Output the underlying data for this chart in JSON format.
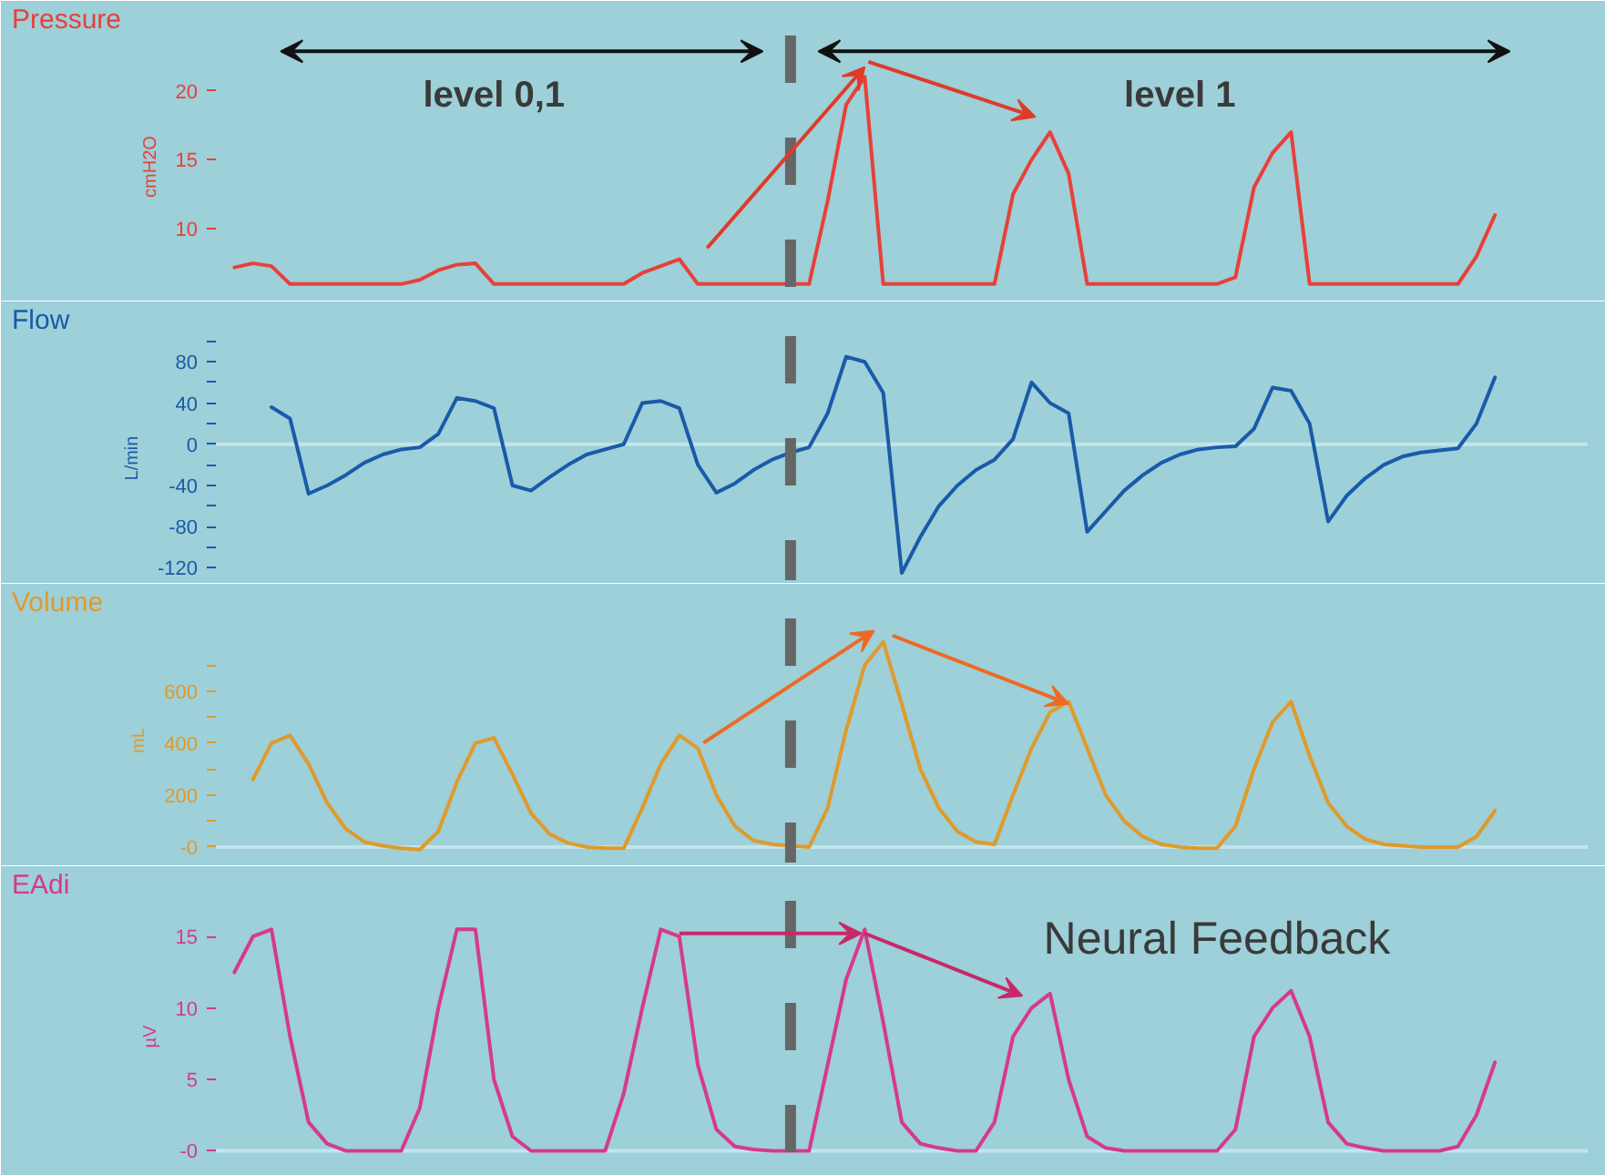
{
  "chart_data": [
    {
      "type": "line",
      "title": "Pressure",
      "ylabel": "cmH2O",
      "tick_labels": "y",
      "annotations": [
        "level 0,1",
        "level 1"
      ],
      "categories": [
        null,
        null,
        null,
        null,
        null,
        null,
        null,
        null,
        null,
        null,
        null,
        null,
        null,
        null,
        null,
        null,
        null,
        null,
        null,
        null,
        null,
        null,
        null,
        null,
        null,
        null,
        null,
        null,
        null,
        null,
        null,
        null,
        null,
        null,
        null,
        null,
        null,
        null,
        null,
        null,
        null,
        null,
        null,
        null,
        null,
        null,
        null,
        null,
        null,
        null,
        null,
        null,
        null,
        null,
        null,
        null,
        null,
        null,
        null,
        null,
        null,
        null,
        null,
        null,
        null,
        null,
        null,
        null,
        null
      ],
      "ylim": [
        5,
        24
      ],
      "yticks": [
        10,
        15,
        20
      ],
      "series": [
        {
          "color": "#e8403a",
          "values": [
            7.2,
            7.5,
            7.3,
            6,
            6,
            6,
            6,
            6,
            6,
            6,
            6.3,
            7.0,
            7.4,
            7.5,
            6,
            6,
            6,
            6,
            6,
            6,
            6,
            6,
            6.8,
            7.3,
            7.8,
            6,
            6,
            6,
            6,
            6,
            6,
            6,
            12,
            19,
            21,
            6,
            6,
            6,
            6,
            6,
            6,
            6,
            12.5,
            15,
            17,
            14,
            6,
            6,
            6,
            6,
            6,
            6,
            6,
            6,
            6.5,
            13,
            15.5,
            17,
            6,
            6,
            6,
            6,
            6,
            6,
            6,
            6,
            6,
            8,
            11
          ]
        }
      ]
    },
    {
      "type": "line",
      "title": "Flow",
      "ylabel": "L/min",
      "tick_labels": "y",
      "categories": [
        null,
        null,
        null,
        null,
        null,
        null,
        null,
        null,
        null,
        null,
        null,
        null,
        null,
        null,
        null,
        null,
        null,
        null,
        null,
        null,
        null,
        null,
        null,
        null,
        null,
        null,
        null,
        null,
        null,
        null,
        null,
        null,
        null,
        null,
        null,
        null,
        null,
        null,
        null,
        null,
        null,
        null,
        null,
        null,
        null,
        null,
        null,
        null,
        null,
        null,
        null,
        null,
        null,
        null,
        null,
        null,
        null,
        null,
        null,
        null,
        null,
        null,
        null,
        null,
        null,
        null,
        null,
        null,
        null
      ],
      "ylim": [
        -132,
        105
      ],
      "yticks": [
        {
          "value": 100,
          "label": null
        },
        80,
        {
          "value": 60,
          "label": null
        },
        40,
        {
          "value": 20,
          "label": null
        },
        0,
        {
          "value": -20,
          "label": null
        },
        -40,
        {
          "value": -60,
          "label": null
        },
        -80,
        {
          "value": -100,
          "label": null
        },
        -120
      ],
      "ref_lines": [
        {
          "axis": "y",
          "value": 0,
          "color": "#c4e4ea"
        }
      ],
      "series": [
        {
          "color": "#1a5aa8",
          "values": [
            null,
            null,
            36,
            25,
            -48,
            -40,
            -30,
            -18,
            -10,
            -5,
            -3,
            10,
            45,
            42,
            35,
            -40,
            -45,
            -32,
            -20,
            -10,
            -5,
            0,
            40,
            42,
            35,
            -20,
            -47,
            -38,
            -25,
            -15,
            -8,
            -3,
            30,
            85,
            80,
            50,
            -125,
            -90,
            -60,
            -40,
            -25,
            -15,
            5,
            60,
            40,
            30,
            -85,
            -65,
            -45,
            -30,
            -18,
            -10,
            -5,
            -3,
            -2,
            15,
            55,
            52,
            20,
            -75,
            -50,
            -33,
            -20,
            -12,
            -8,
            -6,
            -4,
            20,
            65
          ]
        }
      ]
    },
    {
      "type": "line",
      "title": "Volume",
      "ylabel": "mL",
      "tick_labels": "y",
      "categories": [
        null,
        null,
        null,
        null,
        null,
        null,
        null,
        null,
        null,
        null,
        null,
        null,
        null,
        null,
        null,
        null,
        null,
        null,
        null,
        null,
        null,
        null,
        null,
        null,
        null,
        null,
        null,
        null,
        null,
        null,
        null,
        null,
        null,
        null,
        null,
        null,
        null,
        null,
        null,
        null,
        null,
        null,
        null,
        null,
        null,
        null,
        null,
        null,
        null,
        null,
        null,
        null,
        null,
        null,
        null,
        null,
        null,
        null,
        null,
        null,
        null,
        null,
        null,
        null,
        null,
        null,
        null,
        null,
        null
      ],
      "ylim": [
        -60,
        880
      ],
      "yticks": [
        {
          "value": 0,
          "label": "-0"
        },
        {
          "value": 100,
          "label": null
        },
        200,
        {
          "value": 300,
          "label": null
        },
        400,
        {
          "value": 500,
          "label": null
        },
        600,
        {
          "value": 700,
          "label": null
        }
      ],
      "ref_lines": [
        {
          "axis": "y",
          "value": 0,
          "color": "#c4e4ea"
        }
      ],
      "series": [
        {
          "color": "#e09a2c",
          "values": [
            null,
            260,
            400,
            430,
            320,
            170,
            70,
            20,
            5,
            -5,
            -10,
            60,
            250,
            400,
            420,
            280,
            130,
            50,
            15,
            0,
            -5,
            -5,
            150,
            320,
            430,
            380,
            200,
            80,
            25,
            10,
            5,
            0,
            150,
            450,
            700,
            790,
            550,
            300,
            150,
            60,
            20,
            10,
            200,
            380,
            520,
            560,
            380,
            200,
            100,
            40,
            10,
            0,
            -5,
            -5,
            80,
            300,
            480,
            560,
            350,
            170,
            80,
            30,
            10,
            5,
            0,
            0,
            0,
            40,
            140
          ]
        }
      ]
    },
    {
      "type": "line",
      "title": "EAdi",
      "ylabel": "µV",
      "tick_labels": "y",
      "annotations": [
        "Neural Feedback"
      ],
      "categories": [
        null,
        null,
        null,
        null,
        null,
        null,
        null,
        null,
        null,
        null,
        null,
        null,
        null,
        null,
        null,
        null,
        null,
        null,
        null,
        null,
        null,
        null,
        null,
        null,
        null,
        null,
        null,
        null,
        null,
        null,
        null,
        null,
        null,
        null,
        null,
        null,
        null,
        null,
        null,
        null,
        null,
        null,
        null,
        null,
        null,
        null,
        null,
        null,
        null,
        null,
        null,
        null,
        null,
        null,
        null,
        null,
        null,
        null,
        null,
        null,
        null,
        null,
        null,
        null,
        null,
        null,
        null,
        null,
        null
      ],
      "ylim": [
        -1.5,
        17.5
      ],
      "yticks": [
        {
          "value": 0,
          "label": "-0"
        },
        5,
        10,
        15
      ],
      "ref_lines": [
        {
          "axis": "y",
          "value": 0,
          "color": "#c4e4ea"
        }
      ],
      "series": [
        {
          "color": "#d63a8a",
          "values": [
            12.5,
            15,
            15.5,
            8,
            2,
            0.5,
            0,
            0,
            0,
            0,
            3,
            10,
            15.5,
            15.5,
            5,
            1,
            0,
            0,
            0,
            0,
            0,
            4,
            10,
            15.5,
            15,
            6,
            1.5,
            0.3,
            0.1,
            0,
            0,
            0,
            6,
            12,
            15.5,
            9,
            2,
            0.5,
            0.2,
            0,
            0,
            2,
            8,
            10,
            11,
            5,
            1,
            0.2,
            0,
            0,
            0,
            0,
            0,
            0,
            1.5,
            8,
            10,
            11.2,
            8,
            2,
            0.5,
            0.2,
            0,
            0,
            0,
            0,
            0.3,
            2.5,
            6.2
          ]
        }
      ]
    }
  ]
}
